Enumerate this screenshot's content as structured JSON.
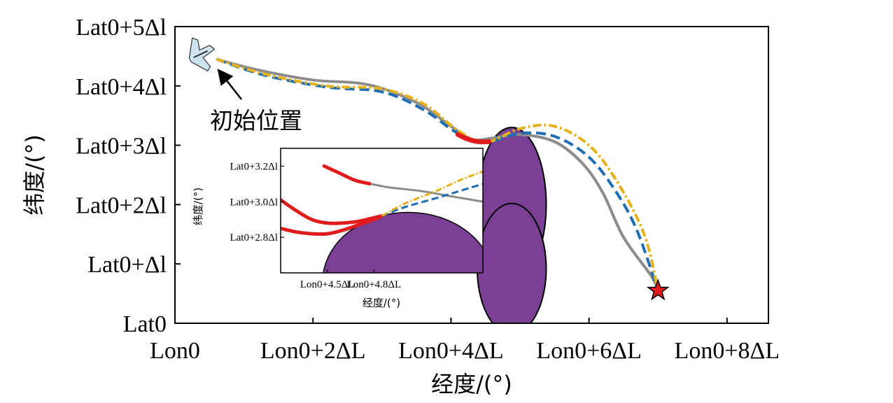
{
  "chart_data": [
    {
      "type": "line",
      "title": "",
      "xlabel": "经度/(°)",
      "ylabel": "纬度/(°)",
      "x_unit": "ΔL",
      "y_unit": "Δl",
      "xlim": [
        0,
        8.6
      ],
      "ylim": [
        0,
        5
      ],
      "x_ticks": [
        0,
        2,
        4,
        6,
        8
      ],
      "x_tick_labels": [
        "Lon0",
        "Lon0+2ΔL",
        "Lon0+4ΔL",
        "Lon0+6ΔL",
        "Lon0+8ΔL"
      ],
      "y_ticks": [
        0,
        1,
        2,
        3,
        4,
        5
      ],
      "y_tick_labels": [
        "Lat0",
        "Lat0+Δl",
        "Lat0+2Δl",
        "Lat0+3Δl",
        "Lat0+4Δl",
        "Lat0+5Δl"
      ],
      "grid": false,
      "legend": "none",
      "series": [
        {
          "style": "solid",
          "color": "#8c8c8c",
          "points": [
            [
              0.6,
              4.45
            ],
            [
              1.2,
              4.27
            ],
            [
              2.0,
              4.1
            ],
            [
              2.8,
              4.02
            ],
            [
              3.5,
              3.72
            ],
            [
              4.0,
              3.32
            ],
            [
              4.3,
              3.1
            ],
            [
              4.6,
              3.12
            ],
            [
              5.0,
              3.18
            ],
            [
              5.5,
              3.06
            ],
            [
              5.9,
              2.7
            ],
            [
              6.2,
              2.2
            ],
            [
              6.5,
              1.45
            ],
            [
              6.9,
              0.8
            ],
            [
              7.0,
              0.55
            ]
          ]
        },
        {
          "style": "dashed",
          "color": "#1f6eb4",
          "points": [
            [
              0.6,
              4.45
            ],
            [
              1.3,
              4.18
            ],
            [
              2.2,
              3.98
            ],
            [
              3.0,
              3.9
            ],
            [
              3.6,
              3.6
            ],
            [
              4.1,
              3.2
            ],
            [
              4.5,
              3.05
            ],
            [
              5.0,
              3.2
            ],
            [
              5.5,
              3.15
            ],
            [
              6.0,
              2.8
            ],
            [
              6.4,
              2.2
            ],
            [
              6.7,
              1.55
            ],
            [
              7.0,
              0.55
            ]
          ]
        },
        {
          "style": "dash-dot",
          "color": "#e5b21b",
          "points": [
            [
              0.6,
              4.45
            ],
            [
              1.3,
              4.2
            ],
            [
              2.2,
              4.0
            ],
            [
              3.0,
              3.95
            ],
            [
              3.6,
              3.7
            ],
            [
              4.1,
              3.25
            ],
            [
              4.5,
              3.05
            ],
            [
              5.0,
              3.28
            ],
            [
              5.5,
              3.32
            ],
            [
              6.0,
              3.0
            ],
            [
              6.4,
              2.4
            ],
            [
              6.8,
              1.5
            ],
            [
              7.0,
              0.55
            ]
          ]
        },
        {
          "style": "marker",
          "color": "#e01b1b",
          "points": [
            [
              4.1,
              3.18
            ],
            [
              4.25,
              3.1
            ],
            [
              4.4,
              3.06
            ],
            [
              4.55,
              3.06
            ]
          ]
        }
      ],
      "regions": [
        {
          "shape": "ellipse",
          "color": "#7b3f93",
          "center": [
            4.88,
            2.0
          ],
          "radius": [
            0.5,
            1.3
          ]
        },
        {
          "shape": "ellipse",
          "color": "#7b3f93",
          "center": [
            4.88,
            0.92
          ],
          "radius": [
            0.5,
            1.1
          ]
        }
      ],
      "markers": [
        {
          "name": "start",
          "symbol": "aircraft",
          "color": "#cde3ef",
          "x": 0.4,
          "y": 4.55
        },
        {
          "name": "target",
          "symbol": "star",
          "color": "#e01b1b",
          "x": 7.0,
          "y": 0.55
        }
      ],
      "annotations": [
        {
          "text": "初始位置",
          "arrow_to": [
            0.6,
            4.45
          ]
        }
      ]
    },
    {
      "type": "line",
      "title": "",
      "xlabel": "经度/(°)",
      "ylabel": "纬度/(°)",
      "x_unit": "ΔL",
      "y_unit": "Δl",
      "xlim": [
        4.2,
        5.5
      ],
      "ylim": [
        2.6,
        3.3
      ],
      "x_ticks": [
        4.5,
        4.8
      ],
      "x_tick_labels": [
        "Lon0+4.5ΔL",
        "Lon0+4.8ΔL"
      ],
      "y_ticks": [
        2.8,
        3.0,
        3.2
      ],
      "y_tick_labels": [
        "Lat0+2.8Δl",
        "Lat0+3.0Δl",
        "Lat0+3.2Δl"
      ],
      "grid": false,
      "legend": "none",
      "series": [
        {
          "style": "marker",
          "color": "#e01b1b",
          "points": [
            [
              4.48,
              3.2
            ],
            [
              4.58,
              3.16
            ],
            [
              4.68,
              3.12
            ],
            [
              4.78,
              3.1
            ]
          ]
        },
        {
          "style": "solid",
          "color": "#8c8c8c",
          "points": [
            [
              4.78,
              3.1
            ],
            [
              4.9,
              3.08
            ],
            [
              5.1,
              3.06
            ],
            [
              5.3,
              3.03
            ],
            [
              5.5,
              3.0
            ]
          ]
        },
        {
          "style": "marker",
          "color": "#e01b1b",
          "points": [
            [
              4.2,
              3.01
            ],
            [
              4.3,
              2.95
            ],
            [
              4.4,
              2.9
            ],
            [
              4.5,
              2.88
            ],
            [
              4.6,
              2.88
            ],
            [
              4.7,
              2.89
            ],
            [
              4.8,
              2.91
            ],
            [
              4.85,
              2.92
            ]
          ]
        },
        {
          "style": "marker",
          "color": "#e01b1b",
          "points": [
            [
              4.2,
              2.85
            ],
            [
              4.3,
              2.83
            ],
            [
              4.4,
              2.82
            ],
            [
              4.5,
              2.82
            ],
            [
              4.6,
              2.84
            ],
            [
              4.7,
              2.87
            ],
            [
              4.8,
              2.9
            ],
            [
              4.85,
              2.92
            ]
          ]
        },
        {
          "style": "dashed",
          "color": "#1f6eb4",
          "points": [
            [
              4.85,
              2.92
            ],
            [
              5.0,
              2.97
            ],
            [
              5.2,
              3.02
            ],
            [
              5.35,
              3.06
            ],
            [
              5.5,
              3.1
            ]
          ]
        },
        {
          "style": "dash-dot",
          "color": "#e5b21b",
          "points": [
            [
              4.85,
              2.92
            ],
            [
              5.0,
              2.99
            ],
            [
              5.2,
              3.06
            ],
            [
              5.35,
              3.12
            ],
            [
              5.5,
              3.17
            ]
          ]
        }
      ],
      "regions": [
        {
          "shape": "ellipse",
          "color": "#7b3f93",
          "center": [
            5.02,
            2.55
          ],
          "radius": [
            0.55,
            0.39
          ]
        }
      ]
    }
  ]
}
